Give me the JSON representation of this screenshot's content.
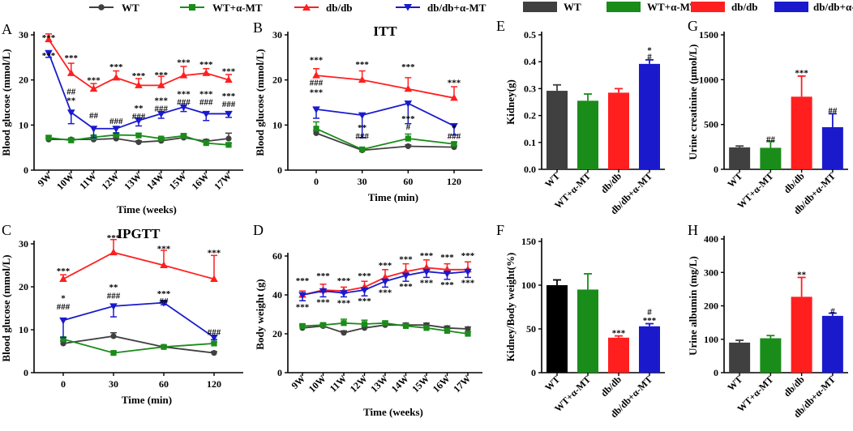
{
  "colors": {
    "WT": "#404040",
    "WTa": "#1a8c1a",
    "db": "#ff1f1f",
    "dba": "#1a1acc",
    "axis": "#000000"
  },
  "legends": {
    "left": [
      "WT",
      "WT+α-MT",
      "db/db",
      "db/db+α-MT"
    ],
    "right": [
      "WT",
      "WT+α-MT",
      "db/db",
      "db/db+α-MT"
    ]
  },
  "chart_data": [
    {
      "id": "A",
      "panel": "A",
      "type": "line",
      "title": "",
      "xlabel": "Time (weeks)",
      "ylabel": "Blood glucose (mmol/L)",
      "categories": [
        "9W",
        "10W",
        "11W",
        "12W",
        "13W",
        "14W",
        "15W",
        "16W",
        "17W"
      ],
      "ylim": [
        0,
        30
      ],
      "yticks": [
        0,
        10,
        20,
        30
      ],
      "series": [
        {
          "name": "WT",
          "key": "WT",
          "marker": "circle",
          "values": [
            6.8,
            6.8,
            6.8,
            7.0,
            6.2,
            6.5,
            7.2,
            6.4,
            7.0
          ],
          "err": [
            0.3,
            0.3,
            0.3,
            0.4,
            0.3,
            0.3,
            0.5,
            0.4,
            1.2
          ]
        },
        {
          "name": "WT+α-MT",
          "key": "WTa",
          "marker": "square",
          "values": [
            7.2,
            6.6,
            7.3,
            7.8,
            7.7,
            7.0,
            7.6,
            6.0,
            5.6
          ],
          "err": [
            0.4,
            0.3,
            0.4,
            0.4,
            0.4,
            0.3,
            0.5,
            0.4,
            0.4
          ]
        },
        {
          "name": "db/db",
          "key": "db",
          "marker": "triangle-up",
          "values": [
            29.0,
            21.5,
            18.0,
            20.5,
            18.8,
            18.8,
            21.0,
            21.5,
            20.0
          ],
          "err": [
            1.2,
            2.2,
            1.2,
            1.5,
            1.5,
            2.0,
            2.0,
            1.0,
            1.2
          ]
        },
        {
          "name": "db/db+α-MT",
          "key": "dba",
          "marker": "triangle-down",
          "values": [
            26.0,
            12.8,
            9.2,
            9.2,
            11.0,
            12.5,
            14.0,
            12.5,
            12.5
          ],
          "err": [
            1.0,
            2.5,
            2.0,
            1.0,
            1.2,
            1.0,
            1.0,
            1.5,
            0.8
          ]
        }
      ],
      "annotations": [
        {
          "x": "9W",
          "y": 29.5,
          "text": "***"
        },
        {
          "x": "9W",
          "y": 25.5,
          "text": "***"
        },
        {
          "x": "10W",
          "y": 25.0,
          "text": "***"
        },
        {
          "x": "10W",
          "y": 17.5,
          "text": "##"
        },
        {
          "x": "10W",
          "y": 15.5,
          "text": "**"
        },
        {
          "x": "11W",
          "y": 20.0,
          "text": "***"
        },
        {
          "x": "11W",
          "y": 12.2,
          "text": "##"
        },
        {
          "x": "12W",
          "y": 23.0,
          "text": "***"
        },
        {
          "x": "12W",
          "y": 11.0,
          "text": "###"
        },
        {
          "x": "13W",
          "y": 21.0,
          "text": "***"
        },
        {
          "x": "13W",
          "y": 13.8,
          "text": "**"
        },
        {
          "x": "13W",
          "y": 12.0,
          "text": "###"
        },
        {
          "x": "14W",
          "y": 21.2,
          "text": "***"
        },
        {
          "x": "14W",
          "y": 15.5,
          "text": "***"
        },
        {
          "x": "14W",
          "y": 13.7,
          "text": "###"
        },
        {
          "x": "15W",
          "y": 24.0,
          "text": "***"
        },
        {
          "x": "15W",
          "y": 17.0,
          "text": "***"
        },
        {
          "x": "15W",
          "y": 15.2,
          "text": "###"
        },
        {
          "x": "16W",
          "y": 23.5,
          "text": "***"
        },
        {
          "x": "16W",
          "y": 17.0,
          "text": "***"
        },
        {
          "x": "16W",
          "y": 15.2,
          "text": "###"
        },
        {
          "x": "17W",
          "y": 22.0,
          "text": "***"
        },
        {
          "x": "17W",
          "y": 16.5,
          "text": "***"
        },
        {
          "x": "17W",
          "y": 14.7,
          "text": "###"
        }
      ]
    },
    {
      "id": "B",
      "panel": "B",
      "type": "line",
      "title": "ITT",
      "xlabel": "Time (min)",
      "ylabel": "Blood glucose (mmol/L)",
      "categories": [
        "0",
        "30",
        "60",
        "120"
      ],
      "ylim": [
        0,
        30
      ],
      "yticks": [
        0,
        10,
        20,
        30
      ],
      "series": [
        {
          "name": "WT",
          "key": "WT",
          "marker": "circle",
          "values": [
            8.2,
            4.4,
            5.3,
            5.1
          ],
          "err": [
            0.5,
            0.3,
            0.3,
            0.3
          ]
        },
        {
          "name": "WT+α-MT",
          "key": "WTa",
          "marker": "square",
          "values": [
            9.2,
            4.6,
            7.0,
            5.8
          ],
          "err": [
            1.5,
            0.3,
            1.0,
            0.4
          ]
        },
        {
          "name": "db/db",
          "key": "db",
          "marker": "triangle-up",
          "values": [
            21.0,
            20.0,
            18.0,
            16.0
          ],
          "err": [
            1.5,
            2.0,
            2.5,
            2.5
          ]
        },
        {
          "name": "db/db+α-MT",
          "key": "dba",
          "marker": "triangle-down",
          "values": [
            13.5,
            12.2,
            14.8,
            9.8
          ],
          "err": [
            2.0,
            5.0,
            4.5,
            2.0
          ]
        }
      ],
      "annotations": [
        {
          "x": "0",
          "y": 24.5,
          "text": "***"
        },
        {
          "x": "0",
          "y": 19.5,
          "text": "###"
        },
        {
          "x": "0",
          "y": 17.3,
          "text": "***"
        },
        {
          "x": "30",
          "y": 23.5,
          "text": "***"
        },
        {
          "x": "30",
          "y": 9.5,
          "text": "**"
        },
        {
          "x": "30",
          "y": 7.6,
          "text": "###"
        },
        {
          "x": "60",
          "y": 23.0,
          "text": "***"
        },
        {
          "x": "60",
          "y": 11.5,
          "text": "***"
        },
        {
          "x": "60",
          "y": 9.7,
          "text": "#"
        },
        {
          "x": "120",
          "y": 19.5,
          "text": "***"
        },
        {
          "x": "120",
          "y": 9.5,
          "text": "*"
        },
        {
          "x": "120",
          "y": 7.6,
          "text": "###"
        }
      ]
    },
    {
      "id": "C",
      "panel": "C",
      "type": "line",
      "title": "IPGTT",
      "xlabel": "Time (min)",
      "ylabel": "Blood glucose (mmol/L)",
      "categories": [
        "0",
        "30",
        "60",
        "120"
      ],
      "ylim": [
        0,
        30
      ],
      "yticks": [
        0,
        10,
        20,
        30
      ],
      "series": [
        {
          "name": "WT",
          "key": "WT",
          "marker": "circle",
          "values": [
            6.8,
            8.5,
            6.0,
            4.6
          ],
          "err": [
            0.5,
            0.8,
            0.3,
            0.3
          ]
        },
        {
          "name": "WT+α-MT",
          "key": "WTa",
          "marker": "square",
          "values": [
            7.8,
            4.6,
            6.0,
            6.8
          ],
          "err": [
            0.5,
            0.3,
            0.3,
            0.3
          ]
        },
        {
          "name": "db/db",
          "key": "db",
          "marker": "triangle-up",
          "values": [
            21.8,
            28.0,
            25.0,
            21.8
          ],
          "err": [
            1.0,
            3.0,
            3.5,
            5.5
          ]
        },
        {
          "name": "db/db+α-MT",
          "key": "dba",
          "marker": "triangle-down",
          "values": [
            12.2,
            15.5,
            16.3,
            8.2
          ],
          "err": [
            4.0,
            2.5,
            0.5,
            0.5
          ]
        }
      ],
      "annotations": [
        {
          "x": "0",
          "y": 23.8,
          "text": "***"
        },
        {
          "x": "0",
          "y": 17.5,
          "text": "*"
        },
        {
          "x": "0",
          "y": 15.5,
          "text": "###"
        },
        {
          "x": "30",
          "y": 31.5,
          "text": "***"
        },
        {
          "x": "30",
          "y": 20.0,
          "text": "**"
        },
        {
          "x": "30",
          "y": 18.0,
          "text": "###"
        },
        {
          "x": "60",
          "y": 29.0,
          "text": "***"
        },
        {
          "x": "60",
          "y": 18.5,
          "text": "***"
        },
        {
          "x": "60",
          "y": 16.8,
          "text": "##"
        },
        {
          "x": "120",
          "y": 28.0,
          "text": "***"
        },
        {
          "x": "120",
          "y": 9.5,
          "text": "###"
        }
      ]
    },
    {
      "id": "D",
      "panel": "D",
      "type": "line",
      "title": "",
      "xlabel": "Time (weeks)",
      "ylabel": "Body weight (g)",
      "categories": [
        "9W",
        "10W",
        "11W",
        "12W",
        "13W",
        "14W",
        "15W",
        "16W",
        "17W"
      ],
      "ylim": [
        0,
        60
      ],
      "yticks": [
        0,
        20,
        40,
        60
      ],
      "series": [
        {
          "name": "WT",
          "key": "WT",
          "marker": "circle",
          "values": [
            23,
            24,
            20.5,
            23,
            24.5,
            24.5,
            24.5,
            23,
            22.5
          ],
          "err": [
            1,
            1,
            1,
            1,
            1,
            1,
            1,
            1,
            1
          ]
        },
        {
          "name": "WT+α-MT",
          "key": "WTa",
          "marker": "square",
          "values": [
            24,
            24.5,
            25.5,
            25,
            25.5,
            24,
            23,
            21.5,
            20
          ],
          "err": [
            1,
            1,
            2,
            2,
            1,
            1,
            1,
            1,
            1
          ]
        },
        {
          "name": "db/db",
          "key": "db",
          "marker": "triangle-up",
          "values": [
            40,
            42.5,
            42,
            44,
            49,
            52,
            54,
            53,
            53
          ],
          "err": [
            2,
            3,
            2,
            3,
            4,
            4,
            4,
            3,
            4
          ]
        },
        {
          "name": "db/db+α-MT",
          "key": "dba",
          "marker": "triangle-down",
          "values": [
            40,
            42,
            41,
            42.5,
            47,
            50,
            52,
            51,
            52
          ],
          "err": [
            3,
            3,
            2,
            3,
            3,
            3,
            3,
            3,
            3
          ]
        }
      ],
      "annotations": [
        {
          "x": "9W",
          "y": 47.5,
          "text": "***"
        },
        {
          "x": "9W",
          "y": 34.0,
          "text": "***"
        },
        {
          "x": "10W",
          "y": 50.0,
          "text": "***"
        },
        {
          "x": "10W",
          "y": 36.5,
          "text": "***"
        },
        {
          "x": "11W",
          "y": 47.5,
          "text": "***"
        },
        {
          "x": "11W",
          "y": 36.0,
          "text": "***"
        },
        {
          "x": "12W",
          "y": 50.0,
          "text": "***"
        },
        {
          "x": "12W",
          "y": 37.0,
          "text": "***"
        },
        {
          "x": "13W",
          "y": 55.5,
          "text": "***"
        },
        {
          "x": "13W",
          "y": 41.5,
          "text": "***"
        },
        {
          "x": "14W",
          "y": 58.5,
          "text": "***"
        },
        {
          "x": "14W",
          "y": 44.5,
          "text": "***"
        },
        {
          "x": "15W",
          "y": 60.5,
          "text": "***"
        },
        {
          "x": "15W",
          "y": 46.5,
          "text": "***"
        },
        {
          "x": "16W",
          "y": 59.5,
          "text": "***"
        },
        {
          "x": "16W",
          "y": 45.5,
          "text": "***"
        },
        {
          "x": "17W",
          "y": 60.5,
          "text": "***"
        },
        {
          "x": "17W",
          "y": 46.5,
          "text": "***"
        }
      ]
    },
    {
      "id": "E",
      "panel": "E",
      "type": "bar",
      "title": "",
      "xlabel": "",
      "ylabel": "Kidney(g)",
      "categories": [
        "WT",
        "WT+α-MT",
        "db/db",
        "db/db+α-MT"
      ],
      "ylim": [
        0,
        0.5
      ],
      "yticks": [
        0.0,
        0.1,
        0.2,
        0.3,
        0.4,
        0.5
      ],
      "tick_decimals": 1,
      "values": [
        0.292,
        0.255,
        0.285,
        0.392
      ],
      "err": [
        0.022,
        0.025,
        0.015,
        0.015
      ],
      "bar_colors": [
        "WT",
        "WTa",
        "db",
        "dba"
      ],
      "annotations": [
        {
          "x": "db/db+α-MT",
          "y": 0.445,
          "text": "*"
        },
        {
          "x": "db/db+α-MT",
          "y": 0.42,
          "text": "#"
        }
      ]
    },
    {
      "id": "F",
      "panel": "F",
      "type": "bar",
      "title": "",
      "xlabel": "",
      "ylabel": "Kidney/Body weight(%)",
      "categories": [
        "WT",
        "WT+α-MT",
        "db/db",
        "db/db+α-MT"
      ],
      "ylim": [
        0,
        150
      ],
      "yticks": [
        0,
        50,
        100,
        150
      ],
      "tick_decimals": 0,
      "values": [
        100,
        95,
        40,
        53
      ],
      "err": [
        6,
        18,
        2,
        3
      ],
      "bar_colors": [
        "WT_F",
        "WTa",
        "db",
        "dba"
      ],
      "annotations": [
        {
          "x": "db/db",
          "y": 46,
          "text": "***"
        },
        {
          "x": "db/db+α-MT",
          "y": 60,
          "text": "***"
        },
        {
          "x": "db/db+α-MT",
          "y": 70,
          "text": "#"
        }
      ]
    },
    {
      "id": "G",
      "panel": "G",
      "type": "bar",
      "title": "",
      "xlabel": "",
      "ylabel": "Urine creatinine (μmol/L)",
      "categories": [
        "WT",
        "WT+α-MT",
        "db/db",
        "db/db+α-MT"
      ],
      "ylim": [
        0,
        1500
      ],
      "yticks": [
        0,
        500,
        1000,
        1500
      ],
      "tick_decimals": 0,
      "values": [
        245,
        240,
        810,
        470
      ],
      "err": [
        15,
        70,
        230,
        150
      ],
      "bar_colors": [
        "WT",
        "WTa",
        "db",
        "dba"
      ],
      "annotations": [
        {
          "x": "WT+α-MT",
          "y": 340,
          "text": "##"
        },
        {
          "x": "db/db",
          "y": 1080,
          "text": "***"
        },
        {
          "x": "db/db+α-MT",
          "y": 660,
          "text": "##"
        }
      ]
    },
    {
      "id": "H",
      "panel": "H",
      "type": "bar",
      "title": "",
      "xlabel": "",
      "ylabel": "Urine albumin (mg/L)",
      "categories": [
        "WT",
        "WT+α-MT",
        "db/db",
        "db/db+α-MT"
      ],
      "ylim": [
        0,
        400
      ],
      "yticks": [
        0,
        100,
        200,
        300,
        400
      ],
      "tick_decimals": 0,
      "values": [
        90,
        103,
        227,
        170
      ],
      "err": [
        7,
        8,
        58,
        8
      ],
      "bar_colors": [
        "WT",
        "WTa",
        "db",
        "dba"
      ],
      "annotations": [
        {
          "x": "db/db",
          "y": 295,
          "text": "**"
        },
        {
          "x": "db/db+α-MT",
          "y": 185,
          "text": "#"
        }
      ]
    }
  ]
}
